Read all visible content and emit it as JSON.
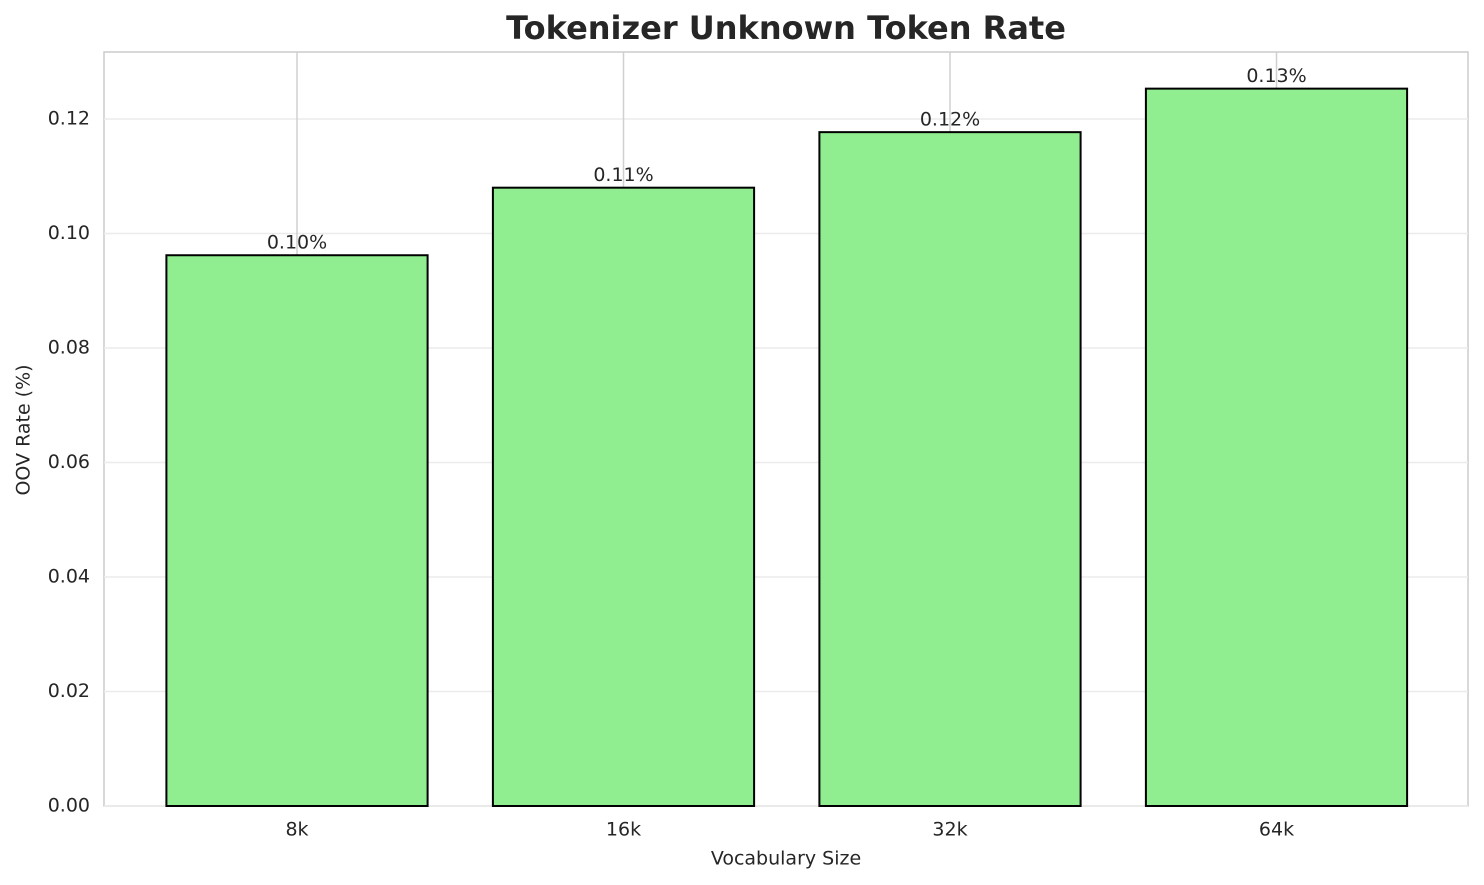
{
  "chart_data": {
    "type": "bar",
    "title": "Tokenizer Unknown Token Rate",
    "x_label": "Vocabulary Size",
    "y_label": "OOV Rate (%)",
    "categories": [
      "8k",
      "16k",
      "32k",
      "64k"
    ],
    "values": [
      0.0962,
      0.108,
      0.1177,
      0.1253
    ],
    "value_labels": [
      "0.10%",
      "0.11%",
      "0.12%",
      "0.13%"
    ],
    "color": "#90ee90",
    "edgecolor": "#000000",
    "ylim": [
      0,
      0.1317
    ],
    "yticks": [
      {
        "value": 0,
        "label": "0.00"
      },
      {
        "value": 0.02,
        "label": "0.02"
      },
      {
        "value": 0.04,
        "label": "0.04"
      },
      {
        "value": 0.06,
        "label": "0.06"
      },
      {
        "value": 0.08,
        "label": "0.08"
      },
      {
        "value": 0.1,
        "label": "0.10"
      },
      {
        "value": 0.12,
        "label": "0.12"
      }
    ],
    "grid": true
  }
}
